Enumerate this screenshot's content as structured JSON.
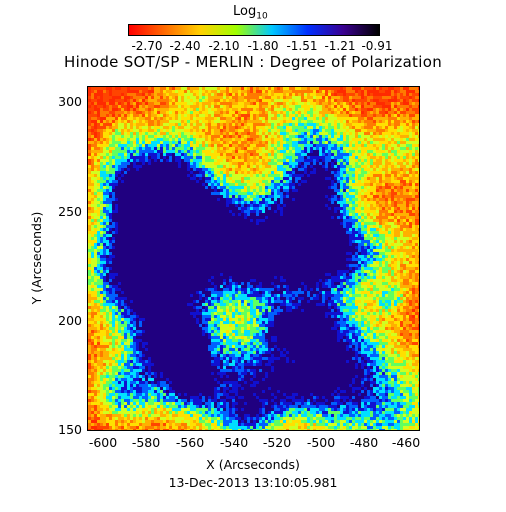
{
  "colorbar": {
    "label": "Log",
    "label_subscript": "10",
    "tick_labels": [
      "-2.70",
      "-2.40",
      "-2.10",
      "-1.80",
      "-1.51",
      "-1.21",
      "-0.91"
    ],
    "colors": [
      "#ff0000",
      "#ff6a00",
      "#ffd000",
      "#a0ff00",
      "#00c8ff",
      "#0030ff",
      "#3a0090",
      "#000000"
    ]
  },
  "title": "Hinode SOT/SP - MERLIN : Degree of Polarization",
  "axes": {
    "y_label": "Y (Arcseconds)",
    "x_label": "X (Arcseconds)",
    "y_ticks": [
      "300",
      "250",
      "200",
      "150"
    ],
    "x_ticks": [
      "-600",
      "-580",
      "-560",
      "-540",
      "-520",
      "-500",
      "-480",
      "-460"
    ]
  },
  "timestamp": "13-Dec-2013 13:10:05.981",
  "map": {
    "palette": [
      "#ff2a00",
      "#ff4500",
      "#ff7a00",
      "#ffb000",
      "#ffe000",
      "#d0ff20",
      "#60ff60",
      "#00e0ff",
      "#0060ff",
      "#1010d0",
      "#200080"
    ]
  }
}
